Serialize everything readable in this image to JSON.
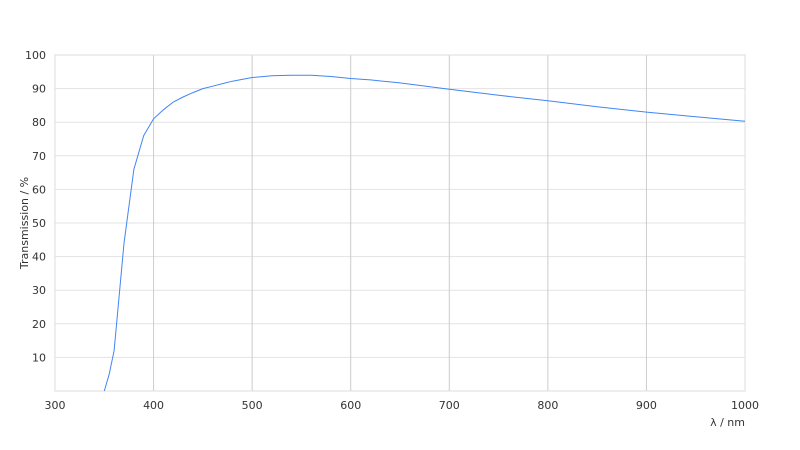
{
  "chart_data": {
    "type": "line",
    "title": "",
    "xlabel": "λ / nm",
    "ylabel": "Transmission / %",
    "xlim": [
      300,
      1000
    ],
    "ylim": [
      0,
      100
    ],
    "xticks": [
      300,
      400,
      500,
      600,
      700,
      800,
      900,
      1000
    ],
    "yticks": [
      10,
      20,
      30,
      40,
      50,
      60,
      70,
      80,
      90,
      100
    ],
    "grid": true,
    "line_color": "#4285f4",
    "series": [
      {
        "x": [
          350,
          355,
          360,
          370,
          380,
          390,
          400,
          410,
          420,
          430,
          440,
          450,
          460,
          470,
          480,
          500,
          520,
          540,
          560,
          580,
          600,
          620,
          650,
          700,
          750,
          800,
          850,
          900,
          950,
          1000
        ],
        "y": [
          0,
          5,
          12,
          44,
          66,
          76,
          81,
          83.7,
          86,
          87.5,
          88.8,
          90,
          90.7,
          91.5,
          92.2,
          93.3,
          93.8,
          94,
          94,
          93.6,
          93,
          92.6,
          91.7,
          89.8,
          88,
          86.4,
          84.6,
          83,
          81.6,
          80.3
        ]
      }
    ]
  }
}
